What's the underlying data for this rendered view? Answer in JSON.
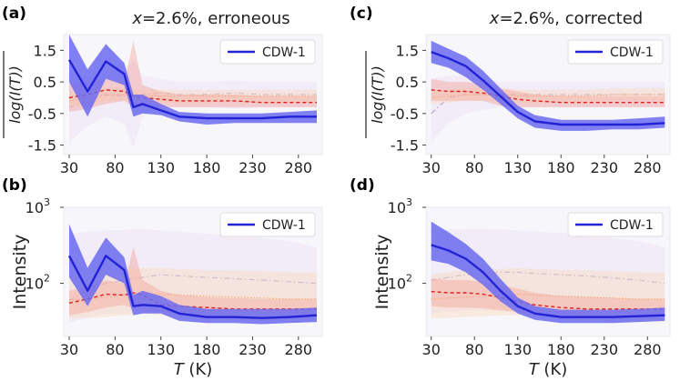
{
  "colors": {
    "cdw": "#2323d6",
    "cdw_band": "#6b6bf0",
    "red_line": "#e02020",
    "red_band": "#f4a39c",
    "orange_line": "#f2b27a",
    "orange_band": "#fbd9bd",
    "purple_line": "#b9a2d6",
    "purple_band": "#ece3f4",
    "panel_bg": "#f7f7fb"
  },
  "chart_data": [
    {
      "panel": "(a)",
      "type": "line",
      "title": "x=2.6%, erroneous",
      "title_var": "x",
      "title_rest": "=2.6%, erroneous",
      "xlabel": "",
      "ylabel": "log(I(T))",
      "ylim": [
        -1.8,
        2.0
      ],
      "xlim": [
        24,
        306
      ],
      "yscale": "linear",
      "xticks": [
        "30",
        "80",
        "130",
        "180",
        "230",
        "280"
      ],
      "yticks": [
        "1.5",
        "0.5",
        "-0.5",
        "-1.5"
      ],
      "legend": "CDW-1",
      "x": [
        30,
        50,
        70,
        90,
        100,
        110,
        130,
        150,
        180,
        210,
        240,
        270,
        300
      ],
      "series": [
        {
          "name": "CDW-1",
          "values": [
            1.2,
            0.2,
            1.15,
            0.75,
            -0.3,
            -0.2,
            -0.4,
            -0.6,
            -0.65,
            -0.65,
            -0.65,
            -0.6,
            -0.6
          ],
          "lower": [
            0.5,
            -0.6,
            0.6,
            0.4,
            -0.6,
            -0.5,
            -0.55,
            -0.75,
            -0.85,
            -0.8,
            -0.8,
            -0.8,
            -0.8
          ],
          "upper": [
            2.0,
            0.9,
            1.7,
            1.1,
            0.1,
            0.1,
            -0.2,
            -0.45,
            -0.5,
            -0.5,
            -0.5,
            -0.45,
            -0.4
          ]
        },
        {
          "name": "red",
          "values": [
            0.0,
            0.1,
            0.25,
            0.2,
            0.05,
            0.0,
            -0.05,
            -0.1,
            -0.1,
            -0.1,
            -0.15,
            -0.15,
            -0.15
          ],
          "lower": [
            -0.45,
            -0.35,
            -0.2,
            -0.1,
            -0.3,
            -0.3,
            -0.3,
            -0.3,
            -0.3,
            -0.3,
            -0.3,
            -0.3,
            -0.3
          ],
          "upper": [
            0.45,
            0.5,
            0.6,
            0.45,
            1.8,
            0.4,
            0.2,
            0.1,
            0.1,
            0.1,
            0.05,
            0.05,
            0.05
          ]
        },
        {
          "name": "orange",
          "values": [
            -0.1,
            0.0,
            0.1,
            0.1,
            0.1,
            0.05,
            0.05,
            0.05,
            0.05,
            0.05,
            0.05,
            0.05,
            0.05
          ],
          "lower": [
            -0.3,
            -0.2,
            -0.1,
            -0.1,
            -0.1,
            -0.15,
            -0.15,
            -0.15,
            -0.15,
            -0.15,
            -0.15,
            -0.15,
            -0.15
          ],
          "upper": [
            0.1,
            0.2,
            0.3,
            0.3,
            0.3,
            0.25,
            0.25,
            0.25,
            0.25,
            0.25,
            0.25,
            0.25,
            0.25
          ]
        },
        {
          "name": "purple",
          "values": [
            -0.3,
            -0.1,
            0.1,
            0.05,
            0.1,
            0.1,
            0.15,
            0.1,
            0.1,
            0.15,
            0.1,
            0.1,
            0.1
          ],
          "lower": [
            -1.4,
            -0.9,
            -0.6,
            -0.8,
            -1.6,
            -0.6,
            -0.3,
            -0.3,
            -0.3,
            -0.35,
            -0.3,
            -0.3,
            -0.3
          ],
          "upper": [
            0.8,
            0.7,
            0.8,
            0.9,
            1.2,
            0.7,
            0.6,
            0.5,
            0.5,
            0.55,
            0.5,
            0.5,
            0.5
          ]
        }
      ]
    },
    {
      "panel": "(c)",
      "type": "line",
      "title": "x=2.6%, corrected",
      "title_var": "x",
      "title_rest": "=2.6%, corrected",
      "xlabel": "",
      "ylabel": "log(I(T))",
      "ylim": [
        -1.8,
        2.0
      ],
      "xlim": [
        24,
        306
      ],
      "yscale": "linear",
      "xticks": [
        "30",
        "80",
        "130",
        "180",
        "230",
        "280"
      ],
      "yticks": [
        "1.5",
        "0.5",
        "-0.5",
        "-1.5"
      ],
      "legend": "CDW-1",
      "x": [
        30,
        50,
        70,
        90,
        110,
        130,
        150,
        180,
        210,
        240,
        270,
        300
      ],
      "series": [
        {
          "name": "CDW-1",
          "values": [
            1.45,
            1.25,
            1.0,
            0.55,
            0.05,
            -0.45,
            -0.75,
            -0.85,
            -0.85,
            -0.85,
            -0.85,
            -0.8
          ],
          "lower": [
            1.1,
            0.95,
            0.65,
            0.25,
            -0.2,
            -0.65,
            -0.95,
            -1.05,
            -1.05,
            -1.0,
            -1.0,
            -0.95
          ],
          "upper": [
            1.8,
            1.55,
            1.3,
            0.85,
            0.3,
            -0.25,
            -0.55,
            -0.7,
            -0.7,
            -0.7,
            -0.65,
            -0.6
          ]
        },
        {
          "name": "red",
          "values": [
            0.25,
            0.2,
            0.2,
            0.15,
            0.05,
            -0.05,
            -0.1,
            -0.15,
            -0.15,
            -0.15,
            -0.15,
            -0.15
          ],
          "lower": [
            -0.1,
            -0.1,
            -0.1,
            -0.1,
            -0.25,
            -0.3,
            -0.3,
            -0.3,
            -0.3,
            -0.3,
            -0.3,
            -0.3
          ],
          "upper": [
            0.6,
            0.5,
            0.5,
            0.45,
            0.3,
            0.2,
            0.1,
            0.05,
            0.05,
            0.05,
            0.05,
            0.05
          ]
        },
        {
          "name": "orange",
          "values": [
            0.0,
            0.05,
            0.1,
            0.1,
            0.1,
            0.05,
            0.05,
            0.05,
            0.05,
            0.1,
            0.1,
            0.1
          ],
          "lower": [
            -0.2,
            -0.15,
            -0.1,
            -0.1,
            -0.1,
            -0.15,
            -0.15,
            -0.15,
            -0.15,
            -0.1,
            -0.1,
            -0.1
          ],
          "upper": [
            0.2,
            0.25,
            0.3,
            0.3,
            0.3,
            0.25,
            0.25,
            0.25,
            0.25,
            0.3,
            0.3,
            0.3
          ]
        },
        {
          "name": "purple",
          "values": [
            -0.5,
            0.0,
            0.1,
            0.1,
            0.1,
            0.1,
            0.1,
            0.1,
            0.1,
            0.1,
            0.1,
            0.1
          ],
          "lower": [
            -1.4,
            -0.8,
            -0.5,
            -0.4,
            -0.3,
            -0.3,
            -0.3,
            -0.3,
            -0.3,
            -0.3,
            -0.3,
            -0.3
          ],
          "upper": [
            0.6,
            0.7,
            0.7,
            0.6,
            0.5,
            0.5,
            0.5,
            0.5,
            0.5,
            0.5,
            0.5,
            0.5
          ]
        }
      ]
    },
    {
      "panel": "(b)",
      "type": "line",
      "title": "",
      "xlabel": "T (K)",
      "xlabel_var": "T",
      "xlabel_rest": " (K)",
      "ylabel": "Intensity",
      "ylim": [
        20,
        1000
      ],
      "xlim": [
        24,
        306
      ],
      "yscale": "log",
      "xticks": [
        "30",
        "80",
        "130",
        "180",
        "230",
        "280"
      ],
      "yticks": [
        "10",
        "10"
      ],
      "ytick_values": [
        1000,
        100
      ],
      "ytick_exps": [
        "3",
        "2"
      ],
      "legend": "CDW-1",
      "x": [
        30,
        50,
        70,
        90,
        100,
        110,
        130,
        150,
        180,
        210,
        240,
        270,
        300
      ],
      "series": [
        {
          "name": "CDW-1",
          "values": [
            230,
            80,
            230,
            150,
            50,
            52,
            50,
            40,
            36,
            36,
            35,
            36,
            38
          ],
          "lower": [
            120,
            50,
            130,
            100,
            38,
            40,
            40,
            32,
            30,
            30,
            29,
            30,
            31
          ],
          "upper": [
            600,
            160,
            400,
            220,
            70,
            80,
            68,
            52,
            46,
            46,
            46,
            46,
            48
          ]
        },
        {
          "name": "red",
          "values": [
            55,
            62,
            72,
            70,
            75,
            70,
            52,
            50,
            48,
            46,
            46,
            46,
            46
          ],
          "lower": [
            38,
            42,
            48,
            52,
            46,
            44,
            42,
            40,
            38,
            37,
            37,
            37,
            37
          ],
          "upper": [
            80,
            90,
            110,
            100,
            300,
            110,
            80,
            70,
            66,
            64,
            62,
            62,
            62
          ]
        },
        {
          "name": "orange",
          "values": [
            60,
            62,
            66,
            70,
            72,
            74,
            72,
            70,
            68,
            66,
            64,
            62,
            62
          ],
          "lower": [
            35,
            35,
            36,
            38,
            38,
            40,
            38,
            36,
            34,
            33,
            32,
            31,
            31
          ],
          "upper": [
            130,
            140,
            150,
            150,
            155,
            160,
            160,
            155,
            150,
            148,
            145,
            140,
            138
          ]
        },
        {
          "name": "purple",
          "values": [
            60,
            80,
            100,
            110,
            115,
            120,
            130,
            125,
            120,
            115,
            110,
            105,
            100
          ],
          "lower": [
            30,
            35,
            40,
            40,
            40,
            40,
            42,
            40,
            38,
            36,
            35,
            34,
            34
          ],
          "upper": [
            450,
            480,
            500,
            500,
            520,
            520,
            500,
            480,
            450,
            420,
            400,
            360,
            300
          ]
        }
      ]
    },
    {
      "panel": "(d)",
      "type": "line",
      "title": "",
      "xlabel": "T (K)",
      "xlabel_var": "T",
      "xlabel_rest": " (K)",
      "ylabel": "Intensity",
      "ylim": [
        20,
        1000
      ],
      "xlim": [
        24,
        306
      ],
      "yscale": "log",
      "xticks": [
        "30",
        "80",
        "130",
        "180",
        "230",
        "280"
      ],
      "yticks": [
        "10",
        "10"
      ],
      "ytick_values": [
        1000,
        100
      ],
      "ytick_exps": [
        "3",
        "2"
      ],
      "legend": "CDW-1",
      "x": [
        30,
        50,
        70,
        90,
        110,
        130,
        150,
        180,
        210,
        240,
        270,
        300
      ],
      "series": [
        {
          "name": "CDW-1",
          "values": [
            320,
            270,
            210,
            140,
            80,
            50,
            40,
            36,
            36,
            36,
            37,
            38
          ],
          "lower": [
            200,
            180,
            140,
            95,
            58,
            40,
            33,
            30,
            30,
            30,
            31,
            32
          ],
          "upper": [
            650,
            470,
            330,
            210,
            115,
            65,
            50,
            45,
            45,
            45,
            46,
            48
          ]
        },
        {
          "name": "red",
          "values": [
            78,
            75,
            75,
            72,
            65,
            58,
            52,
            48,
            46,
            46,
            46,
            46
          ],
          "lower": [
            50,
            48,
            48,
            47,
            44,
            42,
            40,
            38,
            37,
            37,
            37,
            37
          ],
          "upper": [
            115,
            110,
            110,
            105,
            95,
            85,
            75,
            68,
            66,
            64,
            62,
            62
          ]
        },
        {
          "name": "orange",
          "values": [
            62,
            64,
            66,
            68,
            70,
            72,
            70,
            68,
            66,
            64,
            62,
            62
          ],
          "lower": [
            35,
            35,
            36,
            37,
            38,
            38,
            36,
            34,
            33,
            32,
            31,
            31
          ],
          "upper": [
            130,
            140,
            148,
            150,
            155,
            158,
            155,
            150,
            148,
            145,
            140,
            138
          ]
        },
        {
          "name": "purple",
          "values": [
            110,
            120,
            130,
            135,
            140,
            140,
            135,
            130,
            125,
            118,
            110,
            100
          ],
          "lower": [
            40,
            42,
            44,
            44,
            44,
            44,
            42,
            40,
            38,
            36,
            35,
            34
          ],
          "upper": [
            500,
            510,
            520,
            520,
            510,
            500,
            480,
            460,
            430,
            400,
            360,
            300
          ]
        }
      ]
    }
  ]
}
